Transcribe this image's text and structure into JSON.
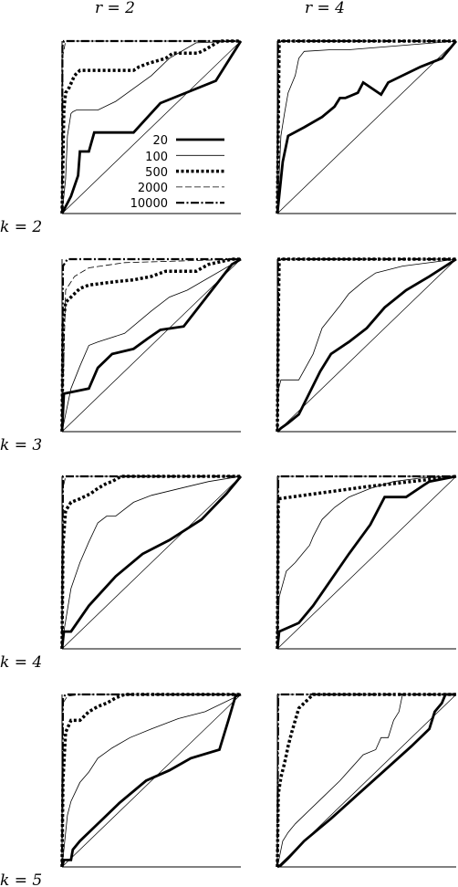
{
  "column_labels": [
    "r = 2",
    "r = 4"
  ],
  "row_labels": [
    "k = 2",
    "k = 3",
    "k = 4",
    "k = 5"
  ],
  "legend": [
    "20",
    "100",
    "500",
    "2000",
    "10000"
  ],
  "series_styles": {
    "20": {
      "width": 2.8,
      "dash": ""
    },
    "100": {
      "width": 0.8,
      "dash": ""
    },
    "500": {
      "width": 3.5,
      "dash": "3,2.5"
    },
    "2000": {
      "width": 0.8,
      "dash": "7,3"
    },
    "10000": {
      "width": 2.2,
      "dash": "9,2.5,2,2.5"
    }
  },
  "chart_data": [
    {
      "type": "line",
      "row": "k = 2",
      "col": "r = 2",
      "xlim": [
        0,
        1
      ],
      "ylim": [
        0,
        1
      ],
      "series": [
        {
          "name": "20",
          "x": [
            0,
            0.05,
            0.09,
            0.1,
            0.15,
            0.18,
            0.2,
            0.4,
            0.55,
            0.86,
            1
          ],
          "y": [
            0,
            0.1,
            0.22,
            0.36,
            0.36,
            0.47,
            0.47,
            0.47,
            0.64,
            0.77,
            1
          ]
        },
        {
          "name": "100",
          "x": [
            0,
            0.02,
            0.03,
            0.05,
            0.06,
            0.08,
            0.2,
            0.3,
            0.5,
            0.6,
            0.75,
            1
          ],
          "y": [
            0,
            0.2,
            0.45,
            0.58,
            0.59,
            0.6,
            0.6,
            0.65,
            0.8,
            0.9,
            0.99,
            1
          ]
        },
        {
          "name": "500",
          "x": [
            0,
            0.01,
            0.02,
            0.04,
            0.07,
            0.1,
            0.4,
            0.43,
            0.48,
            0.58,
            0.62,
            0.76,
            0.8,
            0.88,
            1
          ],
          "y": [
            0,
            0.6,
            0.7,
            0.73,
            0.8,
            0.83,
            0.83,
            0.85,
            0.87,
            0.9,
            0.93,
            0.93,
            0.95,
            1,
            1
          ]
        },
        {
          "name": "2000",
          "x": [
            0,
            0.005,
            0.02,
            1
          ],
          "y": [
            0,
            0.92,
            1,
            1
          ]
        },
        {
          "name": "10000",
          "x": [
            0,
            0.002,
            0.01,
            1
          ],
          "y": [
            0,
            0.97,
            1,
            1
          ]
        }
      ]
    },
    {
      "type": "line",
      "row": "k = 2",
      "col": "r = 4",
      "xlim": [
        0,
        1
      ],
      "ylim": [
        0,
        1
      ],
      "series": [
        {
          "name": "20",
          "x": [
            0,
            0.01,
            0.03,
            0.06,
            0.15,
            0.25,
            0.32,
            0.35,
            0.38,
            0.45,
            0.48,
            0.58,
            0.62,
            0.8,
            0.92,
            1
          ],
          "y": [
            0,
            0.1,
            0.3,
            0.45,
            0.5,
            0.56,
            0.62,
            0.67,
            0.67,
            0.7,
            0.76,
            0.69,
            0.76,
            0.85,
            0.9,
            1
          ]
        },
        {
          "name": "100",
          "x": [
            0,
            0.02,
            0.04,
            0.06,
            0.1,
            0.12,
            0.15,
            0.3,
            0.4,
            1
          ],
          "y": [
            0,
            0.45,
            0.58,
            0.7,
            0.8,
            0.9,
            0.94,
            0.95,
            0.95,
            1
          ]
        },
        {
          "name": "500",
          "x": [
            0,
            0.01,
            1
          ],
          "y": [
            0,
            1,
            1
          ]
        },
        {
          "name": "2000",
          "x": [
            0,
            0.005,
            1
          ],
          "y": [
            0,
            1,
            1
          ]
        },
        {
          "name": "10000",
          "x": [
            0,
            0.005,
            1
          ],
          "y": [
            0,
            1,
            1
          ]
        }
      ]
    },
    {
      "type": "line",
      "row": "k = 3",
      "col": "r = 2",
      "xlim": [
        0,
        1
      ],
      "ylim": [
        0,
        1
      ],
      "series": [
        {
          "name": "20",
          "x": [
            0,
            0.01,
            0.15,
            0.2,
            0.25,
            0.28,
            0.4,
            0.48,
            0.55,
            0.68,
            0.95,
            1
          ],
          "y": [
            0,
            0.22,
            0.25,
            0.37,
            0.42,
            0.45,
            0.48,
            0.54,
            0.59,
            0.61,
            0.97,
            1
          ]
        },
        {
          "name": "100",
          "x": [
            0,
            0.02,
            0.05,
            0.1,
            0.15,
            0.2,
            0.35,
            0.5,
            0.6,
            0.7,
            1
          ],
          "y": [
            0,
            0.1,
            0.25,
            0.38,
            0.5,
            0.52,
            0.57,
            0.7,
            0.78,
            0.82,
            1
          ]
        },
        {
          "name": "500",
          "x": [
            0,
            0.005,
            0.02,
            0.05,
            0.1,
            0.15,
            0.3,
            0.4,
            0.5,
            0.58,
            0.75,
            0.82,
            0.95,
            1
          ],
          "y": [
            0,
            0.62,
            0.75,
            0.78,
            0.83,
            0.85,
            0.87,
            0.88,
            0.9,
            0.93,
            0.93,
            0.97,
            1,
            1
          ]
        },
        {
          "name": "2000",
          "x": [
            0,
            0.02,
            0.07,
            0.15,
            0.35,
            1
          ],
          "y": [
            0,
            0.82,
            0.9,
            0.95,
            0.98,
            1
          ]
        },
        {
          "name": "10000",
          "x": [
            0,
            0.005,
            0.03,
            1
          ],
          "y": [
            0,
            0.96,
            1,
            1
          ]
        }
      ]
    },
    {
      "type": "line",
      "row": "k = 3",
      "col": "r = 4",
      "xlim": [
        0,
        1
      ],
      "ylim": [
        0,
        1
      ],
      "series": [
        {
          "name": "20",
          "x": [
            0,
            0.02,
            0.06,
            0.12,
            0.24,
            0.3,
            0.4,
            0.5,
            0.6,
            0.72,
            0.85,
            1
          ],
          "y": [
            0,
            0.02,
            0.05,
            0.1,
            0.35,
            0.45,
            0.52,
            0.6,
            0.72,
            0.82,
            0.9,
            1
          ]
        },
        {
          "name": "100",
          "x": [
            0,
            0.005,
            0.02,
            0.12,
            0.2,
            0.25,
            0.35,
            0.4,
            0.48,
            0.55,
            0.7,
            1
          ],
          "y": [
            0,
            0.24,
            0.3,
            0.3,
            0.45,
            0.6,
            0.73,
            0.8,
            0.87,
            0.92,
            0.96,
            1
          ]
        },
        {
          "name": "500",
          "x": [
            0,
            0.005,
            0.01,
            1
          ],
          "y": [
            0,
            0.65,
            1,
            1
          ]
        },
        {
          "name": "2000",
          "x": [
            0,
            0.005,
            1
          ],
          "y": [
            0,
            1,
            1
          ]
        },
        {
          "name": "10000",
          "x": [
            0,
            0.005,
            1
          ],
          "y": [
            0,
            1,
            1
          ]
        }
      ]
    },
    {
      "type": "line",
      "row": "k = 4",
      "col": "r = 2",
      "xlim": [
        0,
        1
      ],
      "ylim": [
        0,
        1
      ],
      "series": [
        {
          "name": "20",
          "x": [
            0,
            0.01,
            0.05,
            0.15,
            0.3,
            0.45,
            0.6,
            0.78,
            0.92,
            1
          ],
          "y": [
            0,
            0.1,
            0.1,
            0.25,
            0.42,
            0.55,
            0.63,
            0.75,
            0.9,
            1
          ]
        },
        {
          "name": "100",
          "x": [
            0,
            0.01,
            0.05,
            0.1,
            0.15,
            0.2,
            0.25,
            0.3,
            0.4,
            0.5,
            0.7,
            0.82,
            1
          ],
          "y": [
            0,
            0.1,
            0.35,
            0.5,
            0.62,
            0.73,
            0.77,
            0.77,
            0.85,
            0.89,
            0.94,
            0.97,
            1
          ]
        },
        {
          "name": "500",
          "x": [
            0,
            0.005,
            0.02,
            0.05,
            0.1,
            0.16,
            0.2,
            0.25,
            0.28,
            0.33,
            1
          ],
          "y": [
            0,
            0.6,
            0.8,
            0.85,
            0.87,
            0.9,
            0.93,
            0.96,
            0.97,
            1,
            1
          ]
        },
        {
          "name": "2000",
          "x": [
            0,
            0.005,
            0.02,
            1
          ],
          "y": [
            0,
            0.93,
            1,
            1
          ]
        },
        {
          "name": "10000",
          "x": [
            0,
            0.005,
            1
          ],
          "y": [
            0,
            1,
            1
          ]
        }
      ]
    },
    {
      "type": "line",
      "row": "k = 4",
      "col": "r = 4",
      "xlim": [
        0,
        1
      ],
      "ylim": [
        0,
        1
      ],
      "series": [
        {
          "name": "20",
          "x": [
            0,
            0.01,
            0.12,
            0.2,
            0.3,
            0.4,
            0.52,
            0.6,
            0.72,
            0.82,
            0.85,
            1
          ],
          "y": [
            0,
            0.1,
            0.15,
            0.25,
            0.4,
            0.55,
            0.72,
            0.88,
            0.88,
            0.95,
            0.97,
            1
          ]
        },
        {
          "name": "100",
          "x": [
            0,
            0.01,
            0.05,
            0.1,
            0.14,
            0.18,
            0.2,
            0.25,
            0.32,
            0.4,
            0.52,
            0.65,
            0.8,
            1
          ],
          "y": [
            0,
            0.3,
            0.45,
            0.5,
            0.55,
            0.6,
            0.65,
            0.75,
            0.82,
            0.88,
            0.93,
            0.97,
            0.99,
            1
          ]
        },
        {
          "name": "500",
          "x": [
            0,
            0.005,
            0.5,
            1
          ],
          "y": [
            0,
            0.87,
            0.94,
            1
          ]
        },
        {
          "name": "2000",
          "x": [
            0,
            0.005,
            1
          ],
          "y": [
            0,
            1,
            1
          ]
        },
        {
          "name": "10000",
          "x": [
            0,
            0.005,
            1
          ],
          "y": [
            0,
            1,
            1
          ]
        }
      ]
    },
    {
      "type": "line",
      "row": "k = 5",
      "col": "r = 2",
      "xlim": [
        0,
        1
      ],
      "ylim": [
        0,
        1
      ],
      "series": [
        {
          "name": "20",
          "x": [
            0,
            0.01,
            0.05,
            0.06,
            0.1,
            0.2,
            0.32,
            0.47,
            0.6,
            0.72,
            0.88,
            0.93,
            0.97,
            1
          ],
          "y": [
            0,
            0.04,
            0.04,
            0.1,
            0.15,
            0.25,
            0.37,
            0.5,
            0.56,
            0.63,
            0.68,
            0.85,
            0.99,
            1
          ]
        },
        {
          "name": "100",
          "x": [
            0,
            0.01,
            0.03,
            0.05,
            0.1,
            0.15,
            0.2,
            0.28,
            0.38,
            0.5,
            0.65,
            0.8,
            1
          ],
          "y": [
            0,
            0.1,
            0.3,
            0.38,
            0.49,
            0.55,
            0.63,
            0.69,
            0.75,
            0.8,
            0.86,
            0.9,
            1
          ]
        },
        {
          "name": "500",
          "x": [
            0,
            0.005,
            0.02,
            0.05,
            0.1,
            0.15,
            0.2,
            0.25,
            0.3,
            0.35,
            1
          ],
          "y": [
            0,
            0.5,
            0.78,
            0.85,
            0.85,
            0.9,
            0.93,
            0.95,
            0.98,
            1,
            1
          ]
        },
        {
          "name": "2000",
          "x": [
            0,
            0.005,
            0.03,
            0.1,
            1
          ],
          "y": [
            0,
            0.95,
            0.99,
            1,
            1
          ]
        },
        {
          "name": "10000",
          "x": [
            0,
            0.005,
            0.02,
            1
          ],
          "y": [
            0,
            0.98,
            1,
            1
          ]
        }
      ]
    },
    {
      "type": "line",
      "row": "k = 5",
      "col": "r = 4",
      "xlim": [
        0,
        1
      ],
      "ylim": [
        0,
        1
      ],
      "series": [
        {
          "name": "20",
          "x": [
            0,
            0.02,
            0.06,
            0.15,
            0.3,
            0.45,
            0.6,
            0.75,
            0.85,
            0.88,
            0.92,
            0.94,
            1
          ],
          "y": [
            0,
            0.01,
            0.05,
            0.15,
            0.28,
            0.42,
            0.56,
            0.7,
            0.8,
            0.9,
            0.95,
            1,
            1
          ]
        },
        {
          "name": "100",
          "x": [
            0,
            0.01,
            0.03,
            0.06,
            0.1,
            0.15,
            0.25,
            0.35,
            0.48,
            0.55,
            0.58,
            0.62,
            0.65,
            0.68,
            0.7,
            1
          ],
          "y": [
            0,
            0.05,
            0.15,
            0.2,
            0.25,
            0.3,
            0.4,
            0.5,
            0.65,
            0.68,
            0.75,
            0.75,
            0.85,
            0.9,
            1,
            1
          ]
        },
        {
          "name": "500",
          "x": [
            0,
            0.005,
            0.02,
            0.04,
            0.06,
            0.08,
            0.1,
            0.12,
            0.15,
            0.2,
            1
          ],
          "y": [
            0,
            0.42,
            0.52,
            0.6,
            0.7,
            0.78,
            0.85,
            0.92,
            0.95,
            1,
            1
          ]
        },
        {
          "name": "2000",
          "x": [
            0,
            0.005,
            1
          ],
          "y": [
            0,
            1,
            1
          ]
        },
        {
          "name": "10000",
          "x": [
            0,
            0.005,
            1
          ],
          "y": [
            0,
            1,
            1
          ]
        }
      ]
    }
  ]
}
